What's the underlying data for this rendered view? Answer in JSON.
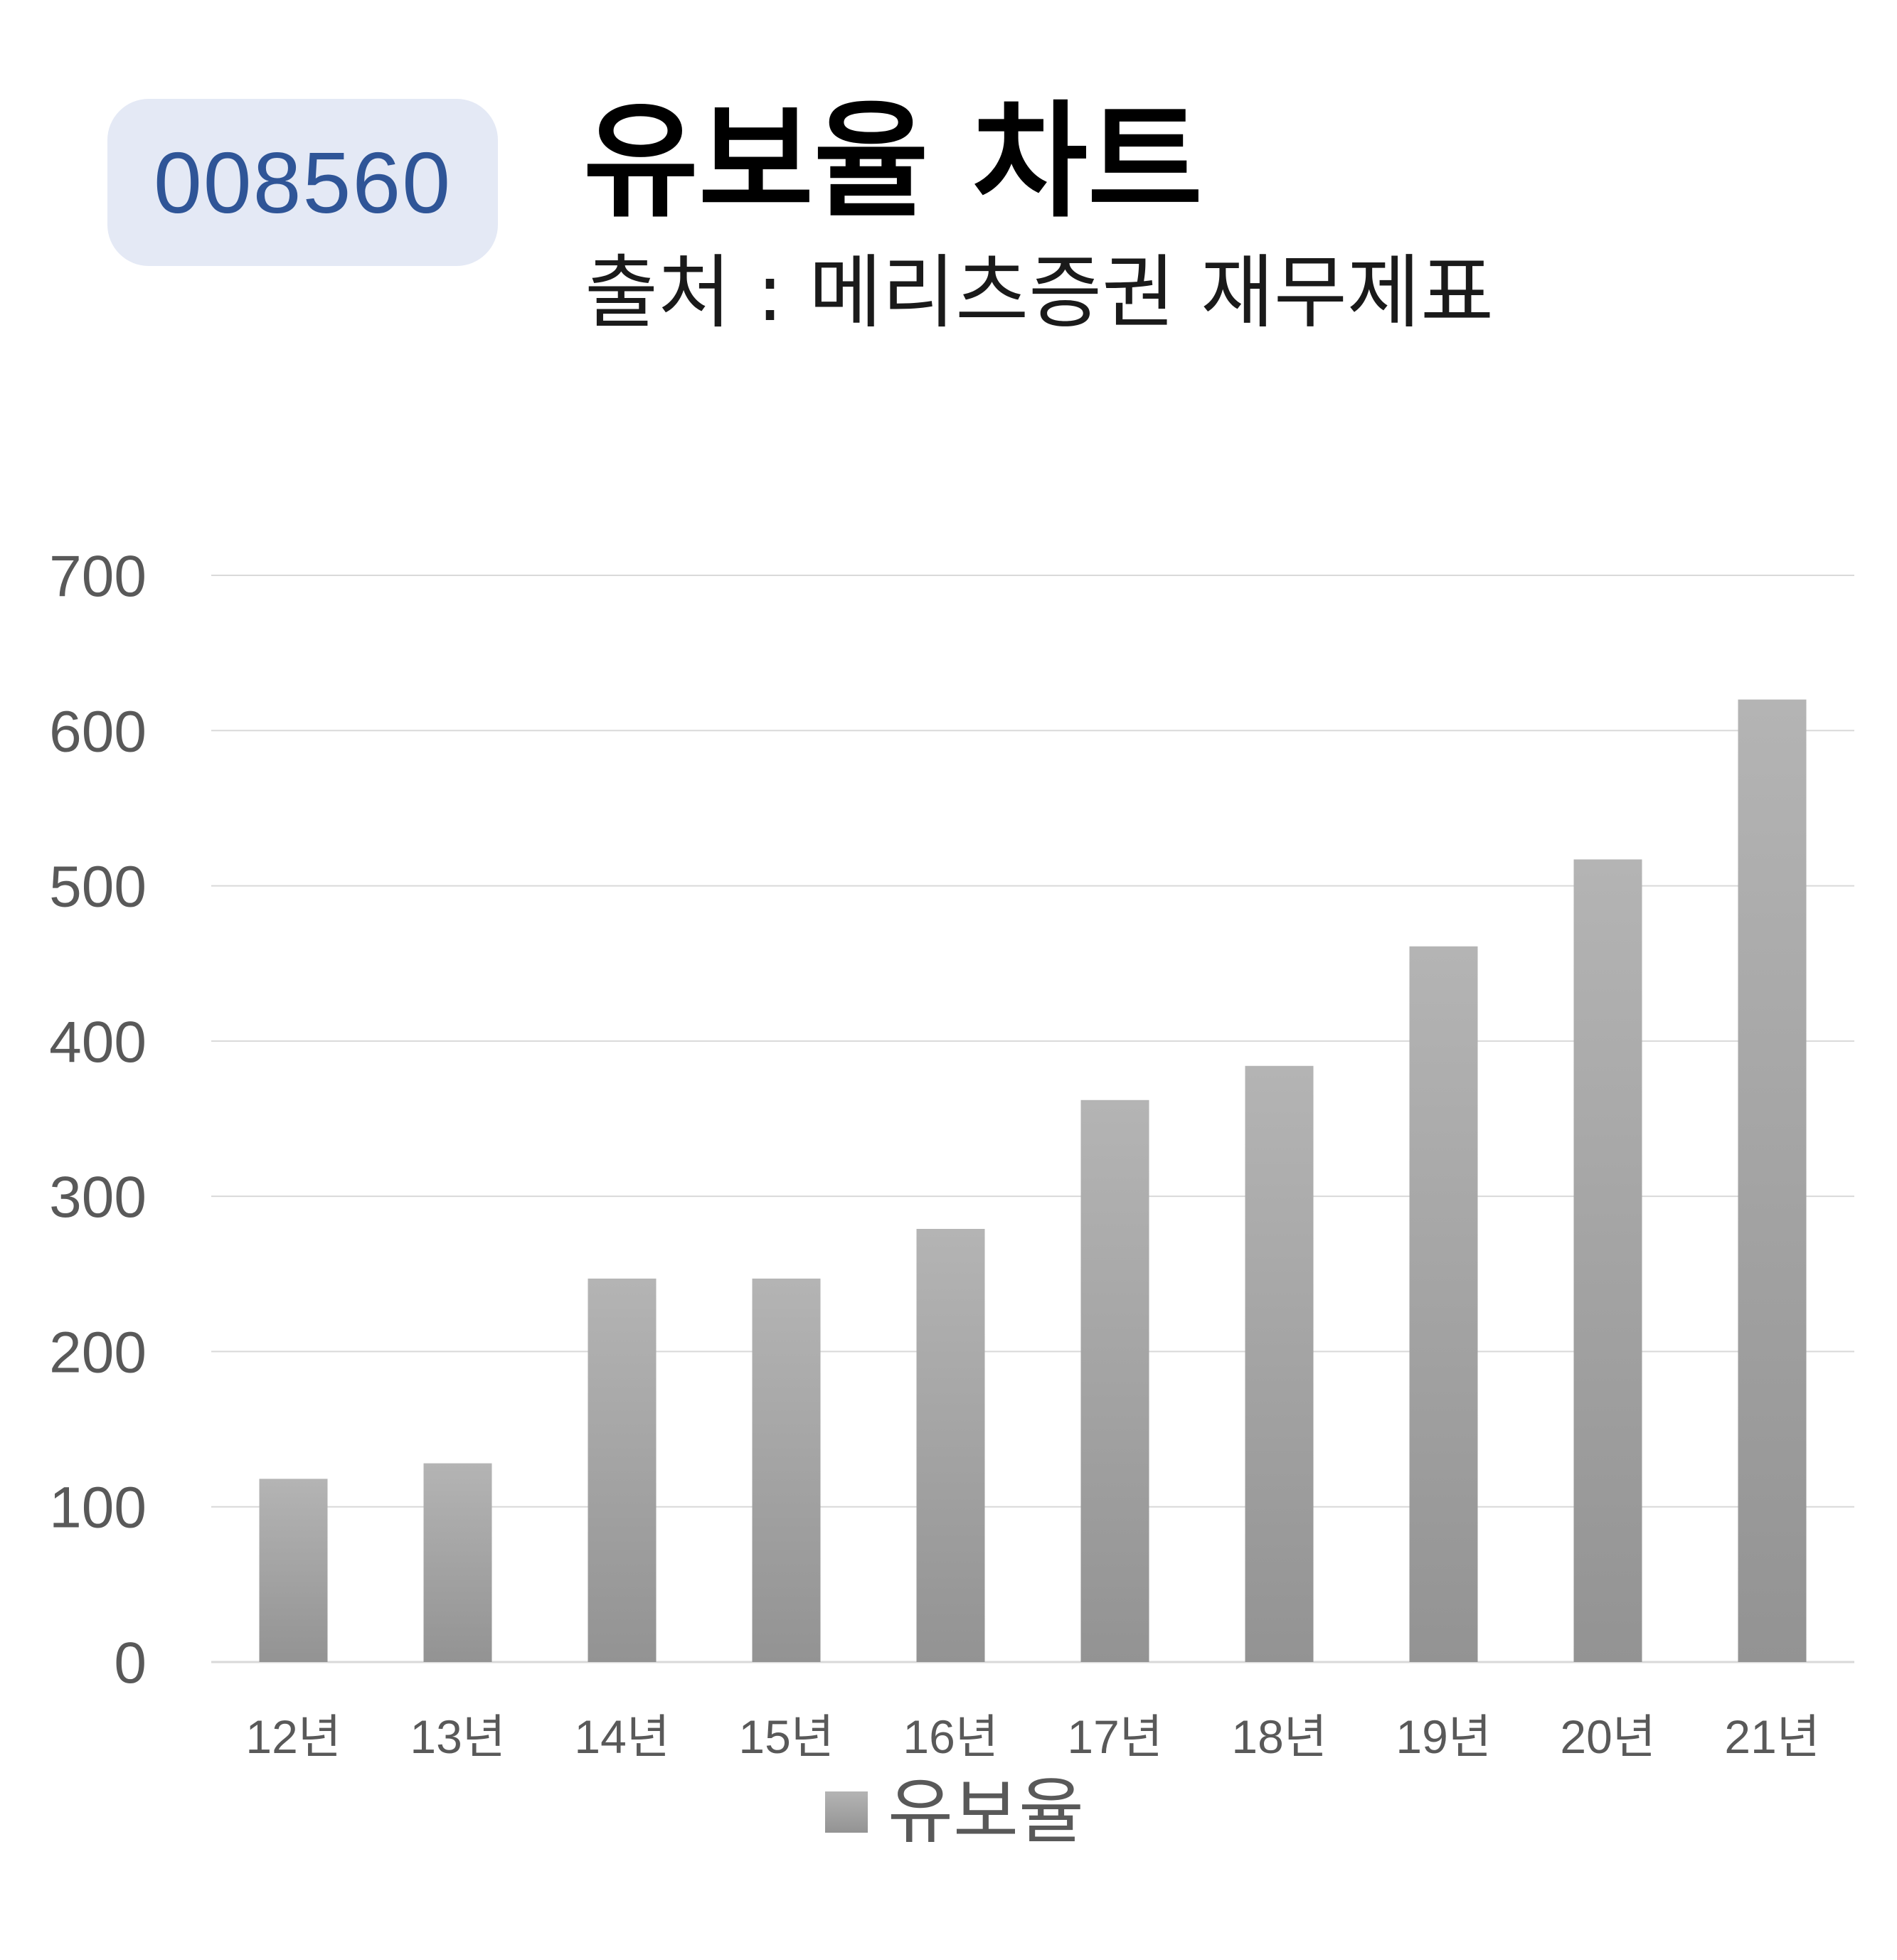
{
  "badge": {
    "code": "008560"
  },
  "title": "유보율 차트",
  "subtitle": "출처 : 메리츠증권 재무제표",
  "colors": {
    "bar_top": "#b4b4b4",
    "bar_bottom": "#939393",
    "grid": "#d9d9d9",
    "badge_bg": "#e4e9f5",
    "badge_text": "#2f5597",
    "tick_text": "#595959"
  },
  "chart_data": {
    "type": "bar",
    "categories": [
      "12년",
      "13년",
      "14년",
      "15년",
      "16년",
      "17년",
      "18년",
      "19년",
      "20년",
      "21년"
    ],
    "series": [
      {
        "name": "유보율",
        "values": [
          118,
          128,
          247,
          247,
          279,
          362,
          384,
          461,
          517,
          620
        ]
      }
    ],
    "yticks": [
      0,
      100,
      200,
      300,
      400,
      500,
      600,
      700
    ],
    "ylim": [
      0,
      700
    ],
    "grid": true,
    "legend_position": "bottom"
  }
}
